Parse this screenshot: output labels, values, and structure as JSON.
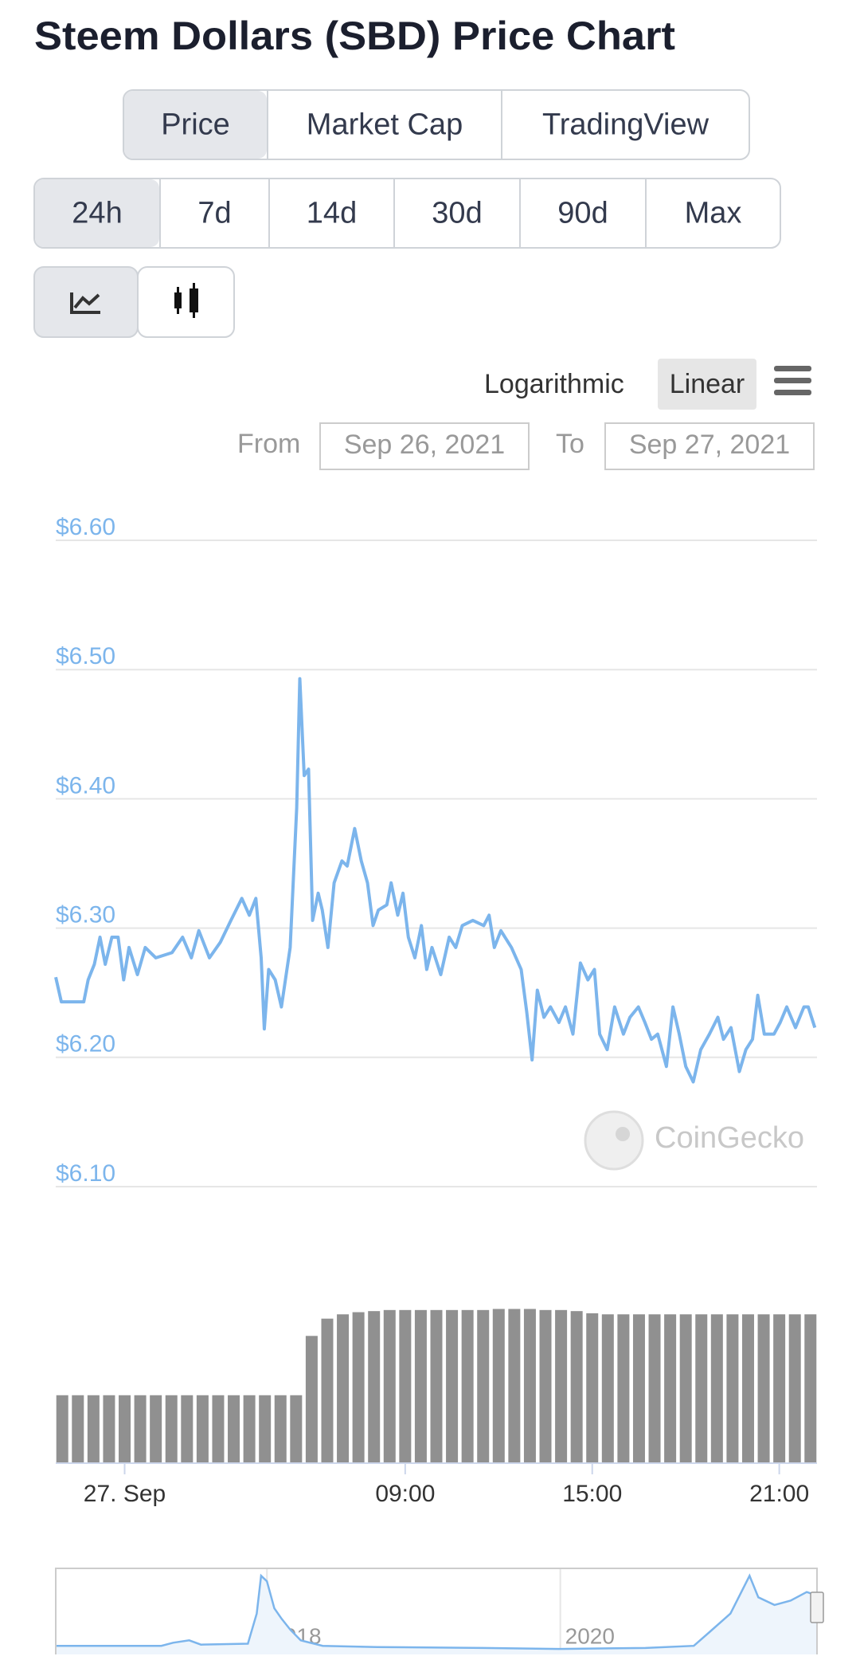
{
  "title": "Steem Dollars (SBD) Price Chart",
  "tabs": [
    "Price",
    "Market Cap",
    "TradingView"
  ],
  "ranges": [
    "24h",
    "7d",
    "14d",
    "30d",
    "90d",
    "Max"
  ],
  "scale_options": [
    "Logarithmic",
    "Linear"
  ],
  "date_range": {
    "from_label": "From",
    "from": "Sep 26, 2021",
    "to_label": "To",
    "to": "Sep 27, 2021"
  },
  "chart_data": {
    "type": "line",
    "color": "#7cb5ec",
    "grid": true,
    "watermark": "CoinGecko",
    "xlim": [
      -2.21,
      22.21
    ],
    "xticks": [
      {
        "value": 0,
        "label": "27. Sep"
      },
      {
        "value": 9,
        "label": "09:00"
      },
      {
        "value": 15,
        "label": "15:00"
      },
      {
        "value": 21,
        "label": "21:00"
      }
    ],
    "ylim": [
      6.1,
      6.6
    ],
    "yticks": [
      {
        "value": 6.1,
        "label": "$6.10"
      },
      {
        "value": 6.2,
        "label": "$6.20"
      },
      {
        "value": 6.3,
        "label": "$6.30"
      },
      {
        "value": 6.4,
        "label": "$6.40"
      },
      {
        "value": 6.5,
        "label": "$6.50"
      },
      {
        "value": 6.6,
        "label": "$6.60"
      }
    ],
    "x": [
      -2.21,
      -2.03,
      -1.59,
      -1.31,
      -1.17,
      -0.97,
      -0.79,
      -0.62,
      -0.41,
      -0.21,
      -0.03,
      0.14,
      0.41,
      0.66,
      1.0,
      1.52,
      1.86,
      2.14,
      2.38,
      2.72,
      3.07,
      3.41,
      3.76,
      4.0,
      4.21,
      4.38,
      4.48,
      4.62,
      4.83,
      5.03,
      5.31,
      5.52,
      5.62,
      5.76,
      5.9,
      6.03,
      6.21,
      6.34,
      6.52,
      6.72,
      6.97,
      7.14,
      7.38,
      7.59,
      7.79,
      7.97,
      8.14,
      8.41,
      8.55,
      8.76,
      8.93,
      9.1,
      9.31,
      9.52,
      9.69,
      9.86,
      10.14,
      10.41,
      10.62,
      10.83,
      11.17,
      11.52,
      11.69,
      11.86,
      12.07,
      12.41,
      12.72,
      12.9,
      13.07,
      13.24,
      13.45,
      13.66,
      13.93,
      14.14,
      14.38,
      14.62,
      14.86,
      15.07,
      15.24,
      15.48,
      15.72,
      16.0,
      16.21,
      16.48,
      16.69,
      16.9,
      17.1,
      17.38,
      17.59,
      17.79,
      18.0,
      18.24,
      18.48,
      18.76,
      19.03,
      19.21,
      19.45,
      19.72,
      19.93,
      20.14,
      20.31,
      20.52,
      20.83,
      21.03,
      21.24,
      21.52,
      21.79,
      21.93,
      22.14
    ],
    "values": [
      6.262,
      6.243,
      6.243,
      6.243,
      6.26,
      6.272,
      6.293,
      6.272,
      6.293,
      6.293,
      6.26,
      6.285,
      6.264,
      6.285,
      6.277,
      6.281,
      6.293,
      6.277,
      6.298,
      6.277,
      6.289,
      6.306,
      6.323,
      6.31,
      6.323,
      6.277,
      6.222,
      6.268,
      6.26,
      6.239,
      6.285,
      6.393,
      6.493,
      6.418,
      6.423,
      6.306,
      6.327,
      6.314,
      6.285,
      6.335,
      6.352,
      6.348,
      6.377,
      6.352,
      6.335,
      6.302,
      6.314,
      6.318,
      6.335,
      6.31,
      6.327,
      6.293,
      6.277,
      6.302,
      6.268,
      6.285,
      6.264,
      6.293,
      6.285,
      6.302,
      6.306,
      6.302,
      6.31,
      6.285,
      6.298,
      6.285,
      6.268,
      6.235,
      6.198,
      6.252,
      6.231,
      6.239,
      6.227,
      6.239,
      6.218,
      6.273,
      6.26,
      6.268,
      6.218,
      6.206,
      6.239,
      6.218,
      6.231,
      6.239,
      6.227,
      6.214,
      6.218,
      6.193,
      6.239,
      6.218,
      6.193,
      6.181,
      6.206,
      6.218,
      6.231,
      6.214,
      6.223,
      6.189,
      6.206,
      6.214,
      6.248,
      6.218,
      6.218,
      6.227,
      6.239,
      6.223,
      6.239,
      6.239,
      6.223
    ],
    "volume": {
      "type": "bar",
      "color": "#909090",
      "ylim": [
        0,
        150
      ],
      "x": [
        -2,
        -1.5,
        -1,
        -0.5,
        0,
        0.5,
        1,
        1.5,
        2,
        2.5,
        3,
        3.5,
        4,
        4.5,
        5,
        5.5,
        6,
        6.5,
        7,
        7.5,
        8,
        8.5,
        9,
        9.5,
        10,
        10.5,
        11,
        11.5,
        12,
        12.5,
        13,
        13.5,
        14,
        14.5,
        15,
        15.5,
        16,
        16.5,
        17,
        17.5,
        18,
        18.5,
        19,
        19.5,
        20,
        20.5,
        21,
        21.5,
        22
      ],
      "values": [
        63,
        63,
        63,
        63,
        63,
        63,
        63,
        63,
        63,
        63,
        63,
        63,
        63,
        63,
        63,
        63,
        118,
        134,
        138,
        140,
        141,
        142,
        142,
        142,
        142,
        142,
        142,
        142,
        143,
        143,
        143,
        142,
        142,
        141,
        139,
        138,
        138,
        138,
        138,
        138,
        138,
        138,
        138,
        138,
        138,
        138,
        138,
        138,
        138
      ]
    },
    "navigator": {
      "type": "area",
      "color": "#7cb5ec",
      "xlim": [
        2016.56,
        2021.75
      ],
      "ylim": [
        0,
        14
      ],
      "xticks": [
        2018,
        2020
      ],
      "x": [
        2016.56,
        2017.28,
        2017.36,
        2017.47,
        2017.55,
        2017.87,
        2017.93,
        2017.96,
        2018.0,
        2018.05,
        2018.1,
        2018.16,
        2018.23,
        2018.38,
        2018.75,
        2019.48,
        2019.99,
        2020.58,
        2020.91,
        2021.02,
        2021.16,
        2021.29,
        2021.35,
        2021.46,
        2021.57,
        2021.68,
        2021.75
      ],
      "values": [
        1.4,
        1.4,
        1.9,
        2.3,
        1.6,
        1.75,
        6.65,
        12.8,
        11.9,
        7.5,
        5.8,
        4.0,
        2.3,
        1.4,
        1.2,
        1.05,
        0.9,
        1.05,
        1.4,
        3.7,
        6.65,
        12.8,
        9.3,
        8.05,
        8.75,
        10.15,
        9.6
      ]
    }
  }
}
